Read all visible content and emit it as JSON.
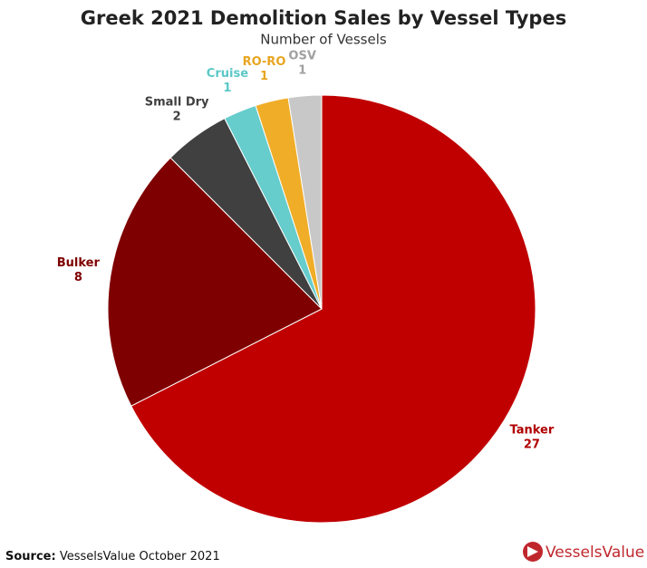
{
  "chart_data": {
    "type": "pie",
    "title": "Greek 2021 Demolition Sales by Vessel Types",
    "subtitle": "Number of Vessels",
    "categories": [
      "Tanker",
      "Bulker",
      "Small Dry",
      "Cruise",
      "RO-RO",
      "OSV"
    ],
    "values": [
      27,
      8,
      2,
      1,
      1,
      1
    ],
    "colors": [
      "#c00000",
      "#7f0000",
      "#404040",
      "#66cccc",
      "#f0ad28",
      "#c8c8c8"
    ],
    "label_colors": [
      "#b00000",
      "#7f0000",
      "#404040",
      "#5cc8c8",
      "#e8a520",
      "#a0a0a0"
    ]
  },
  "footer": {
    "source_label": "Source:",
    "source_text": "VesselsValue October 2021",
    "logo": "VesselsValue"
  }
}
